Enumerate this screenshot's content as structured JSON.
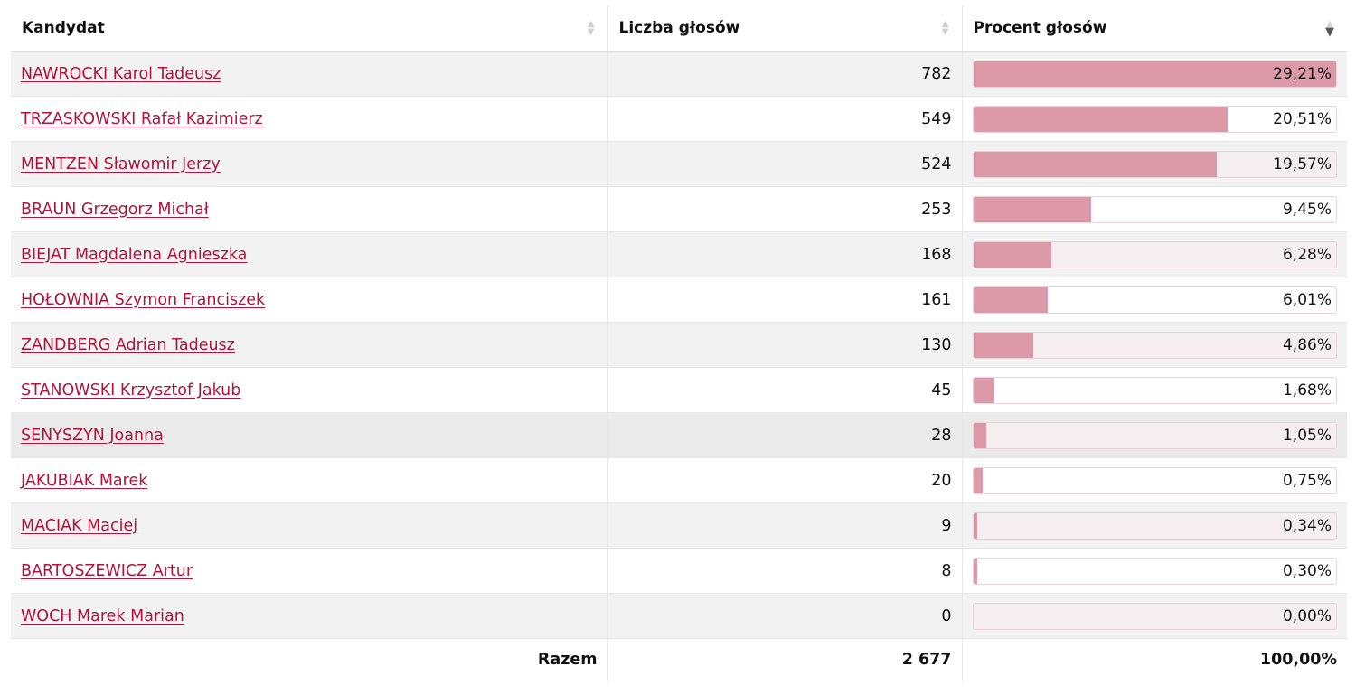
{
  "table": {
    "headers": {
      "candidate": "Kandydat",
      "votes": "Liczba głosów",
      "percent": "Procent głosów"
    },
    "sort": {
      "column": "percent",
      "direction": "descending"
    },
    "rows": [
      {
        "candidate": "NAWROCKI Karol Tadeusz",
        "votes": "782",
        "percent": "29,21%",
        "share": 1.0
      },
      {
        "candidate": "TRZASKOWSKI Rafał Kazimierz",
        "votes": "549",
        "percent": "20,51%",
        "share": 0.702
      },
      {
        "candidate": "MENTZEN Sławomir Jerzy",
        "votes": "524",
        "percent": "19,57%",
        "share": 0.67
      },
      {
        "candidate": "BRAUN Grzegorz Michał",
        "votes": "253",
        "percent": "9,45%",
        "share": 0.324
      },
      {
        "candidate": "BIEJAT Magdalena Agnieszka",
        "votes": "168",
        "percent": "6,28%",
        "share": 0.215
      },
      {
        "candidate": "HOŁOWNIA Szymon Franciszek",
        "votes": "161",
        "percent": "6,01%",
        "share": 0.206
      },
      {
        "candidate": "ZANDBERG Adrian Tadeusz",
        "votes": "130",
        "percent": "4,86%",
        "share": 0.166
      },
      {
        "candidate": "STANOWSKI Krzysztof Jakub",
        "votes": "45",
        "percent": "1,68%",
        "share": 0.058
      },
      {
        "candidate": "SENYSZYN Joanna",
        "votes": "28",
        "percent": "1,05%",
        "share": 0.036
      },
      {
        "candidate": "JAKUBIAK Marek",
        "votes": "20",
        "percent": "0,75%",
        "share": 0.026
      },
      {
        "candidate": "MACIAK Maciej",
        "votes": "9",
        "percent": "0,34%",
        "share": 0.012
      },
      {
        "candidate": "BARTOSZEWICZ Artur",
        "votes": "8",
        "percent": "0,30%",
        "share": 0.01
      },
      {
        "candidate": "WOCH Marek Marian",
        "votes": "0",
        "percent": "0,00%",
        "share": 0.0
      }
    ],
    "total": {
      "label": "Razem",
      "votes": "2 677",
      "percent": "100,00%"
    },
    "highlighted_row": 8
  },
  "colors": {
    "link": "#b0143c",
    "bar_fill": "#dc9aa9",
    "row_alt": "#f2f2f2",
    "row_hover": "#eaeaea"
  },
  "icons": {
    "sort_unsorted": "sort-arrows-icon",
    "sort_desc": "sort-descending-icon"
  }
}
